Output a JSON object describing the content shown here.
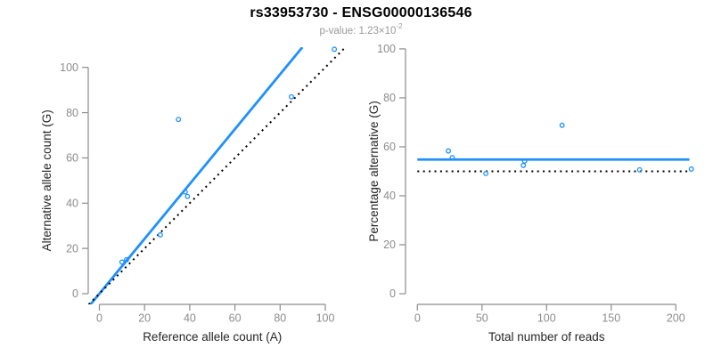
{
  "header": {
    "title": "rs33953730 - ENSG00000136546",
    "subtitle_label": "p-value: ",
    "subtitle_mantissa": "1.23×10",
    "subtitle_exponent": "-2"
  },
  "colors": {
    "accent_blue": "#1E90FF",
    "identity_black": "#000000",
    "axis_gray": "#8C8C8C",
    "label_dark": "#262626",
    "subtitle_gray": "#999999",
    "background": "#FFFFFF"
  },
  "chart_data": [
    {
      "type": "scatter",
      "panel": "left",
      "xlabel": "Reference allele count (A)",
      "ylabel": "Alternative allele count (G)",
      "xticks": [
        0,
        20,
        40,
        60,
        80,
        100
      ],
      "yticks": [
        0,
        20,
        40,
        60,
        80,
        100
      ],
      "xlim": [
        -4.93,
        108.68
      ],
      "ylim": [
        -4.72,
        108.93
      ],
      "grid": false,
      "legend": "none",
      "points": [
        [
          10,
          14
        ],
        [
          12,
          15
        ],
        [
          27,
          26
        ],
        [
          35,
          77
        ],
        [
          38,
          45
        ],
        [
          39,
          43
        ],
        [
          85,
          87
        ],
        [
          104,
          108
        ]
      ],
      "lines": [
        {
          "name": "fitted-allelic-ratio-line",
          "style": "solid",
          "color": "#1E90FF",
          "width": 2.8,
          "x1": -3.9,
          "y1": -4.72,
          "x2": 89.85,
          "y2": 108.9
        },
        {
          "name": "identity-line",
          "style": "dotted",
          "color": "#000000",
          "width": 2,
          "x1": -4.7,
          "y1": -4.7,
          "x2": 108.68,
          "y2": 108.68
        }
      ]
    },
    {
      "type": "scatter",
      "panel": "right",
      "xlabel": "Total number of reads",
      "ylabel": "Percentage alternative (G)",
      "xticks": [
        0,
        50,
        100,
        150,
        200
      ],
      "yticks": [
        0,
        20,
        40,
        60,
        80,
        100
      ],
      "xlim": [
        -9.17,
        212.9
      ],
      "ylim": [
        -4.36,
        100.7
      ],
      "grid": false,
      "legend": "none",
      "points": [
        [
          24,
          58.3
        ],
        [
          27,
          55.6
        ],
        [
          53,
          49.1
        ],
        [
          82,
          52.4
        ],
        [
          83,
          54.2
        ],
        [
          112,
          68.8
        ],
        [
          172,
          50.6
        ],
        [
          212,
          50.9
        ]
      ],
      "lines": [
        {
          "name": "mean-percentage-line",
          "style": "solid",
          "color": "#1E90FF",
          "width": 2.8,
          "x1": 0,
          "y1": 54.8,
          "x2": 210.5,
          "y2": 54.8
        },
        {
          "name": "fifty-percent-line",
          "style": "dotted",
          "color": "#000000",
          "width": 2,
          "x1": 0,
          "y1": 50,
          "x2": 211,
          "y2": 50
        }
      ]
    }
  ]
}
